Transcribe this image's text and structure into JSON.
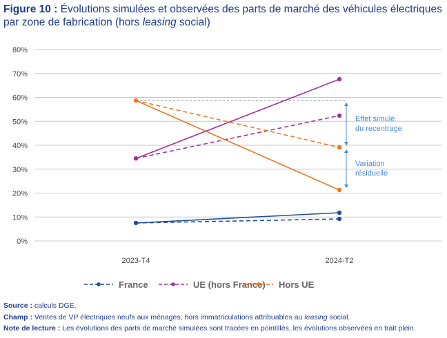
{
  "title": {
    "label": "Figure 10 :",
    "text_before": "Évolutions simulées et observées des parts de marché des véhicules électriques par zone de fabrication (hors ",
    "text_italic": "leasing",
    "text_after": " social)"
  },
  "chart_data": {
    "type": "line",
    "categories": [
      "2023-T4",
      "2024-T2"
    ],
    "ylim": [
      0,
      80
    ],
    "yticks": [
      "0%",
      "10%",
      "20%",
      "30%",
      "40%",
      "50%",
      "60%",
      "70%",
      "80%"
    ],
    "grid": true,
    "legend_placement": "bottom",
    "series": [
      {
        "name": "France",
        "color": "#1f4e9c",
        "observed": [
          7.5,
          11.8
        ],
        "simulated": [
          7.5,
          9.2
        ]
      },
      {
        "name": "UE (hors France)",
        "color": "#a0329b",
        "observed": [
          34.5,
          67.6
        ],
        "simulated": [
          34.5,
          52.4
        ]
      },
      {
        "name": "Hors UE",
        "color": "#f27421",
        "observed": [
          58.7,
          21.3
        ],
        "simulated": [
          58.7,
          39.1
        ]
      }
    ],
    "annotations": [
      {
        "text": [
          "Effet simulé",
          "du recentrage"
        ],
        "from": 58.7,
        "to": 39.1
      },
      {
        "text": [
          "Variation",
          "résiduelle"
        ],
        "from": 39.1,
        "to": 21.3
      }
    ],
    "annotation_color": "#4a8ad0"
  },
  "notes": {
    "source_label": "Source :",
    "source_text": " calculs DGE.",
    "champ_label": "Champ :",
    "champ_before": " Ventes de VP électriques neufs aux ménages, hors immatriculations attribuables au ",
    "champ_italic": "leasing",
    "champ_after": " social.",
    "note_label": "Note de lecture :",
    "note_text": " Les évolutions des parts de marché simulées sont tracées en pointillés, les évolutions observées en trait plein."
  }
}
